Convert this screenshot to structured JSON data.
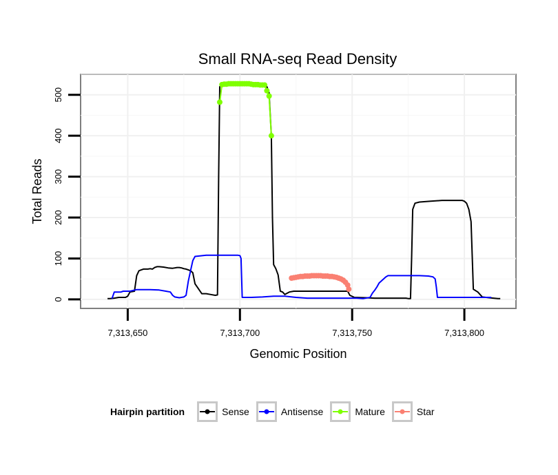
{
  "chart_data": {
    "type": "line",
    "title": "Small RNA-seq Read Density",
    "xlabel": "Genomic Position",
    "ylabel": "Total Reads",
    "xlim": [
      7313629,
      7313823
    ],
    "ylim": [
      -22,
      550
    ],
    "x_ticks": [
      7313650,
      7313700,
      7313750,
      7313800
    ],
    "x_tick_labels": [
      "7,313,650",
      "7,313,700",
      "7,313,750",
      "7,313,800"
    ],
    "y_ticks": [
      0,
      100,
      200,
      300,
      400,
      500
    ],
    "y_tick_labels": [
      "0",
      "100",
      "200",
      "300",
      "400",
      "500"
    ],
    "grid": true,
    "legend": {
      "title": "Hairpin partition",
      "position": "bottom",
      "entries": [
        {
          "name": "Sense",
          "color": "#000000"
        },
        {
          "name": "Antisense",
          "color": "#0000ff"
        },
        {
          "name": "Mature",
          "color": "#7fff00"
        },
        {
          "name": "Star",
          "color": "#fa8072"
        }
      ]
    },
    "series": [
      {
        "name": "Sense",
        "color": "#000000",
        "marker": false,
        "x": [
          7313641,
          7313642,
          7313644,
          7313646,
          7313649,
          7313650,
          7313651,
          7313653,
          7313654,
          7313655,
          7313656,
          7313657,
          7313659,
          7313660,
          7313661,
          7313662,
          7313663,
          7313664,
          7313666,
          7313668,
          7313670,
          7313672,
          7313673,
          7313674,
          7313675,
          7313676,
          7313677,
          7313678,
          7313679,
          7313680,
          7313681,
          7313683,
          7313685,
          7313687,
          7313689,
          7313690,
          7313690.5,
          7313691,
          7313694,
          7313700,
          7313705,
          7313710,
          7313712,
          7313713,
          7313714,
          7313714.5,
          7313715,
          7313716,
          7313717,
          7313718,
          7313719,
          7313720,
          7313721,
          7313722,
          7313724,
          7313726,
          7313729,
          7313732,
          7313735,
          7313738,
          7313741,
          7313744,
          7313746,
          7313747,
          7313748,
          7313749,
          7313751,
          7313756,
          7313760,
          7313765,
          7313770,
          7313774,
          7313775,
          7313776,
          7313776.5,
          7313777,
          7313778,
          7313780,
          7313785,
          7313790,
          7313795,
          7313799,
          7313800,
          7313801,
          7313802,
          7313803,
          7313804,
          7313806,
          7313808,
          7313811,
          7313813,
          7313815,
          7313816
        ],
        "y": [
          2,
          2,
          3,
          5,
          5,
          8,
          18,
          20,
          58,
          70,
          72,
          74,
          74,
          75,
          74,
          78,
          80,
          80,
          79,
          77,
          76,
          78,
          78,
          77,
          75,
          74,
          72,
          70,
          65,
          38,
          30,
          14,
          14,
          12,
          10,
          11,
          300,
          520,
          525,
          525,
          525,
          523,
          520,
          505,
          400,
          200,
          85,
          75,
          60,
          20,
          18,
          12,
          15,
          18,
          20,
          20,
          20,
          20,
          20,
          20,
          20,
          20,
          20,
          20,
          20,
          10,
          5,
          4,
          3,
          3,
          3,
          3,
          2,
          2,
          100,
          220,
          235,
          238,
          240,
          242,
          242,
          242,
          240,
          235,
          220,
          190,
          25,
          18,
          6,
          4,
          3,
          2,
          2
        ]
      },
      {
        "name": "Antisense",
        "color": "#0000ff",
        "marker": false,
        "x": [
          7313643,
          7313644,
          7313647,
          7313648,
          7313651,
          7313654,
          7313660,
          7313664,
          7313667,
          7313669,
          7313670,
          7313671,
          7313673,
          7313675,
          7313676,
          7313677,
          7313678,
          7313679,
          7313680,
          7313685,
          7313690,
          7313695,
          7313699,
          7313700,
          7313700.5,
          7313701,
          7313705,
          7313710,
          7313715,
          7313720,
          7313725,
          7313730,
          7313740,
          7313748,
          7313752,
          7313755,
          7313758,
          7313759,
          7313760,
          7313761,
          7313762,
          7313764,
          7313765,
          7313766,
          7313768,
          7313770,
          7313780,
          7313784,
          7313786,
          7313787,
          7313787.5,
          7313788,
          7313790,
          7313800,
          7313806,
          7313812
        ],
        "y": [
          2,
          18,
          18,
          20,
          20,
          24,
          24,
          23,
          20,
          18,
          10,
          6,
          4,
          6,
          10,
          45,
          70,
          95,
          105,
          108,
          108,
          108,
          108,
          107,
          100,
          5,
          5,
          6,
          8,
          8,
          5,
          3,
          3,
          3,
          3,
          2,
          5,
          15,
          22,
          30,
          40,
          50,
          55,
          58,
          58,
          58,
          58,
          57,
          55,
          50,
          30,
          5,
          5,
          5,
          5,
          5
        ]
      },
      {
        "name": "Mature",
        "color": "#7fff00",
        "marker": true,
        "x": [
          7313691,
          7313692,
          7313693,
          7313694,
          7313695,
          7313696,
          7313697,
          7313698,
          7313699,
          7313700,
          7313701,
          7313702,
          7313703,
          7313704,
          7313705,
          7313706,
          7313707,
          7313708,
          7313709,
          7313710,
          7313711,
          7313712,
          7313713,
          7313714
        ],
        "y": [
          482,
          525,
          526,
          526,
          527,
          527,
          527,
          527,
          527,
          527,
          527,
          527,
          527,
          527,
          526,
          525,
          525,
          525,
          524,
          524,
          524,
          510,
          497,
          400
        ]
      },
      {
        "name": "Star",
        "color": "#fa8072",
        "marker": true,
        "x": [
          7313723,
          7313724,
          7313725,
          7313726,
          7313727,
          7313728,
          7313729,
          7313730,
          7313731,
          7313732,
          7313733,
          7313734,
          7313735,
          7313736,
          7313737,
          7313738,
          7313739,
          7313740,
          7313741,
          7313742,
          7313743,
          7313744,
          7313745,
          7313746,
          7313747,
          7313748,
          7313748.5
        ],
        "y": [
          52,
          53,
          54,
          55,
          56,
          56,
          57,
          57,
          57,
          58,
          58,
          58,
          58,
          58,
          57,
          57,
          57,
          56,
          56,
          55,
          54,
          52,
          50,
          47,
          42,
          35,
          25
        ]
      }
    ]
  }
}
